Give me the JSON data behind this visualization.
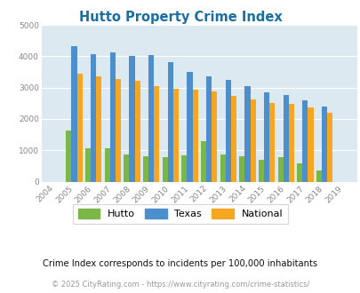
{
  "title": "Hutto Property Crime Index",
  "years": [
    2004,
    2005,
    2006,
    2007,
    2008,
    2009,
    2010,
    2011,
    2012,
    2013,
    2014,
    2015,
    2016,
    2017,
    2018,
    2019
  ],
  "hutto": [
    0,
    1620,
    1060,
    1060,
    870,
    800,
    770,
    830,
    1280,
    880,
    800,
    700,
    770,
    580,
    360,
    0
  ],
  "texas": [
    0,
    4310,
    4070,
    4110,
    4010,
    4040,
    3800,
    3490,
    3370,
    3250,
    3060,
    2850,
    2770,
    2590,
    2390,
    0
  ],
  "national": [
    0,
    3450,
    3360,
    3260,
    3220,
    3050,
    2960,
    2940,
    2880,
    2740,
    2610,
    2500,
    2470,
    2360,
    2200,
    0
  ],
  "hutto_color": "#7ab648",
  "texas_color": "#4d8fcc",
  "national_color": "#f5a623",
  "bg_color": "#dce9f0",
  "title_color": "#1a6fa0",
  "subtitle": "Crime Index corresponds to incidents per 100,000 inhabitants",
  "footer": "© 2025 CityRating.com - https://www.cityrating.com/crime-statistics/",
  "ylim": [
    0,
    5000
  ],
  "yticks": [
    0,
    1000,
    2000,
    3000,
    4000,
    5000
  ]
}
